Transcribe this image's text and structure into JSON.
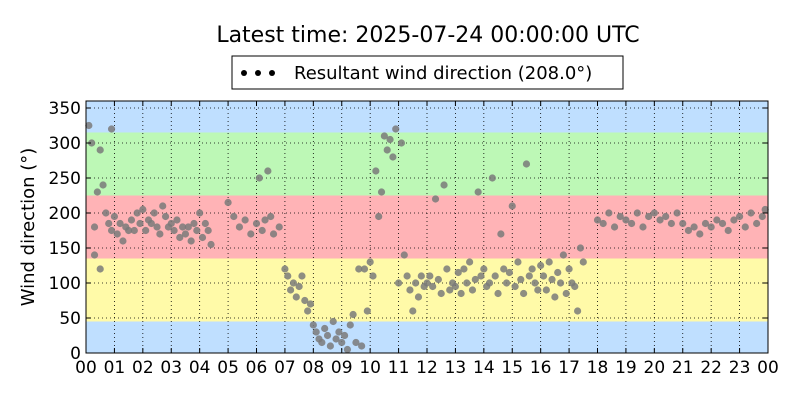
{
  "chart_data": {
    "type": "scatter",
    "title": "Latest time: 2025-07-24 00:00:00 UTC",
    "xlabel": "",
    "ylabel": "Wind direction (°)",
    "xlim": [
      0,
      24
    ],
    "ylim": [
      0,
      360
    ],
    "x_ticks": [
      "00",
      "01",
      "02",
      "03",
      "04",
      "05",
      "06",
      "07",
      "08",
      "09",
      "10",
      "11",
      "12",
      "13",
      "14",
      "15",
      "16",
      "17",
      "18",
      "19",
      "20",
      "21",
      "22",
      "23",
      "00"
    ],
    "y_ticks": [
      0,
      50,
      100,
      150,
      200,
      250,
      300,
      350
    ],
    "grid": true,
    "legend": {
      "placement": "top-center",
      "entries": [
        "Resultant wind direction (208.0°)"
      ]
    },
    "bands": [
      {
        "from": 0,
        "to": 45,
        "color": "#bfdfff"
      },
      {
        "from": 45,
        "to": 135,
        "color": "#fffaa8"
      },
      {
        "from": 135,
        "to": 225,
        "color": "#ffb3b6"
      },
      {
        "from": 225,
        "to": 315,
        "color": "#bdf8b6"
      },
      {
        "from": 315,
        "to": 360,
        "color": "#bfdfff"
      }
    ],
    "series": [
      {
        "name": "Resultant wind direction (208.0°)",
        "color": "#7a7a7a",
        "points": [
          [
            0.1,
            325
          ],
          [
            0.2,
            300
          ],
          [
            0.3,
            180
          ],
          [
            0.3,
            140
          ],
          [
            0.4,
            230
          ],
          [
            0.5,
            290
          ],
          [
            0.5,
            120
          ],
          [
            0.6,
            240
          ],
          [
            0.7,
            200
          ],
          [
            0.8,
            185
          ],
          [
            0.9,
            175
          ],
          [
            0.9,
            320
          ],
          [
            1.0,
            195
          ],
          [
            1.1,
            170
          ],
          [
            1.2,
            185
          ],
          [
            1.3,
            160
          ],
          [
            1.4,
            180
          ],
          [
            1.5,
            175
          ],
          [
            1.6,
            190
          ],
          [
            1.7,
            175
          ],
          [
            1.8,
            200
          ],
          [
            1.9,
            185
          ],
          [
            2.0,
            205
          ],
          [
            2.1,
            175
          ],
          [
            2.2,
            190
          ],
          [
            2.3,
            185
          ],
          [
            2.4,
            200
          ],
          [
            2.5,
            180
          ],
          [
            2.6,
            170
          ],
          [
            2.7,
            210
          ],
          [
            2.8,
            195
          ],
          [
            2.9,
            180
          ],
          [
            3.0,
            185
          ],
          [
            3.1,
            175
          ],
          [
            3.2,
            190
          ],
          [
            3.3,
            165
          ],
          [
            3.4,
            180
          ],
          [
            3.5,
            170
          ],
          [
            3.6,
            180
          ],
          [
            3.7,
            160
          ],
          [
            3.8,
            185
          ],
          [
            3.9,
            175
          ],
          [
            4.0,
            200
          ],
          [
            4.1,
            165
          ],
          [
            4.2,
            185
          ],
          [
            4.3,
            175
          ],
          [
            4.4,
            155
          ],
          [
            5.0,
            215
          ],
          [
            5.2,
            195
          ],
          [
            5.4,
            180
          ],
          [
            5.6,
            190
          ],
          [
            5.8,
            170
          ],
          [
            6.0,
            185
          ],
          [
            6.1,
            250
          ],
          [
            6.2,
            175
          ],
          [
            6.3,
            190
          ],
          [
            6.4,
            260
          ],
          [
            6.5,
            195
          ],
          [
            6.6,
            170
          ],
          [
            6.8,
            180
          ],
          [
            7.0,
            120
          ],
          [
            7.1,
            110
          ],
          [
            7.2,
            90
          ],
          [
            7.3,
            100
          ],
          [
            7.4,
            80
          ],
          [
            7.5,
            95
          ],
          [
            7.6,
            110
          ],
          [
            7.7,
            75
          ],
          [
            7.8,
            60
          ],
          [
            7.9,
            70
          ],
          [
            8.0,
            40
          ],
          [
            8.1,
            30
          ],
          [
            8.2,
            20
          ],
          [
            8.3,
            15
          ],
          [
            8.4,
            35
          ],
          [
            8.5,
            25
          ],
          [
            8.6,
            10
          ],
          [
            8.7,
            45
          ],
          [
            8.8,
            20
          ],
          [
            8.9,
            30
          ],
          [
            9.0,
            15
          ],
          [
            9.1,
            25
          ],
          [
            9.2,
            5
          ],
          [
            9.3,
            40
          ],
          [
            9.4,
            55
          ],
          [
            9.5,
            15
          ],
          [
            9.6,
            120
          ],
          [
            9.7,
            10
          ],
          [
            9.8,
            120
          ],
          [
            9.9,
            60
          ],
          [
            10.0,
            130
          ],
          [
            10.1,
            110
          ],
          [
            10.2,
            260
          ],
          [
            10.3,
            195
          ],
          [
            10.4,
            230
          ],
          [
            10.5,
            310
          ],
          [
            10.6,
            290
          ],
          [
            10.7,
            305
          ],
          [
            10.8,
            280
          ],
          [
            10.9,
            320
          ],
          [
            11.0,
            100
          ],
          [
            11.1,
            300
          ],
          [
            11.2,
            140
          ],
          [
            11.3,
            110
          ],
          [
            11.4,
            90
          ],
          [
            11.5,
            60
          ],
          [
            11.6,
            100
          ],
          [
            11.7,
            80
          ],
          [
            11.8,
            110
          ],
          [
            11.9,
            95
          ],
          [
            12.0,
            100
          ],
          [
            12.1,
            110
          ],
          [
            12.2,
            95
          ],
          [
            12.3,
            220
          ],
          [
            12.4,
            105
          ],
          [
            12.5,
            85
          ],
          [
            12.6,
            240
          ],
          [
            12.7,
            120
          ],
          [
            12.8,
            90
          ],
          [
            12.9,
            100
          ],
          [
            13.0,
            95
          ],
          [
            13.1,
            115
          ],
          [
            13.2,
            85
          ],
          [
            13.3,
            120
          ],
          [
            13.4,
            100
          ],
          [
            13.5,
            130
          ],
          [
            13.6,
            90
          ],
          [
            13.7,
            105
          ],
          [
            13.8,
            230
          ],
          [
            13.9,
            110
          ],
          [
            14.0,
            120
          ],
          [
            14.1,
            95
          ],
          [
            14.2,
            100
          ],
          [
            14.3,
            250
          ],
          [
            14.4,
            110
          ],
          [
            14.5,
            85
          ],
          [
            14.6,
            170
          ],
          [
            14.7,
            120
          ],
          [
            14.8,
            100
          ],
          [
            14.9,
            115
          ],
          [
            15.0,
            210
          ],
          [
            15.1,
            95
          ],
          [
            15.2,
            130
          ],
          [
            15.3,
            105
          ],
          [
            15.4,
            85
          ],
          [
            15.5,
            270
          ],
          [
            15.6,
            110
          ],
          [
            15.7,
            120
          ],
          [
            15.8,
            100
          ],
          [
            15.9,
            90
          ],
          [
            16.0,
            125
          ],
          [
            16.1,
            110
          ],
          [
            16.2,
            90
          ],
          [
            16.3,
            130
          ],
          [
            16.4,
            105
          ],
          [
            16.5,
            80
          ],
          [
            16.6,
            115
          ],
          [
            16.7,
            100
          ],
          [
            16.8,
            140
          ],
          [
            16.9,
            85
          ],
          [
            17.0,
            120
          ],
          [
            17.1,
            100
          ],
          [
            17.2,
            95
          ],
          [
            17.3,
            60
          ],
          [
            17.4,
            150
          ],
          [
            17.5,
            130
          ],
          [
            18.0,
            190
          ],
          [
            18.2,
            185
          ],
          [
            18.4,
            200
          ],
          [
            18.6,
            180
          ],
          [
            18.8,
            195
          ],
          [
            19.0,
            190
          ],
          [
            19.2,
            185
          ],
          [
            19.4,
            200
          ],
          [
            19.6,
            180
          ],
          [
            19.8,
            195
          ],
          [
            20.0,
            200
          ],
          [
            20.2,
            190
          ],
          [
            20.4,
            195
          ],
          [
            20.6,
            185
          ],
          [
            20.8,
            200
          ],
          [
            21.0,
            185
          ],
          [
            21.2,
            175
          ],
          [
            21.4,
            180
          ],
          [
            21.6,
            170
          ],
          [
            21.8,
            185
          ],
          [
            22.0,
            180
          ],
          [
            22.2,
            190
          ],
          [
            22.4,
            185
          ],
          [
            22.6,
            175
          ],
          [
            22.8,
            190
          ],
          [
            23.0,
            195
          ],
          [
            23.2,
            180
          ],
          [
            23.4,
            200
          ],
          [
            23.6,
            185
          ],
          [
            23.8,
            195
          ],
          [
            23.9,
            205
          ]
        ]
      }
    ]
  }
}
